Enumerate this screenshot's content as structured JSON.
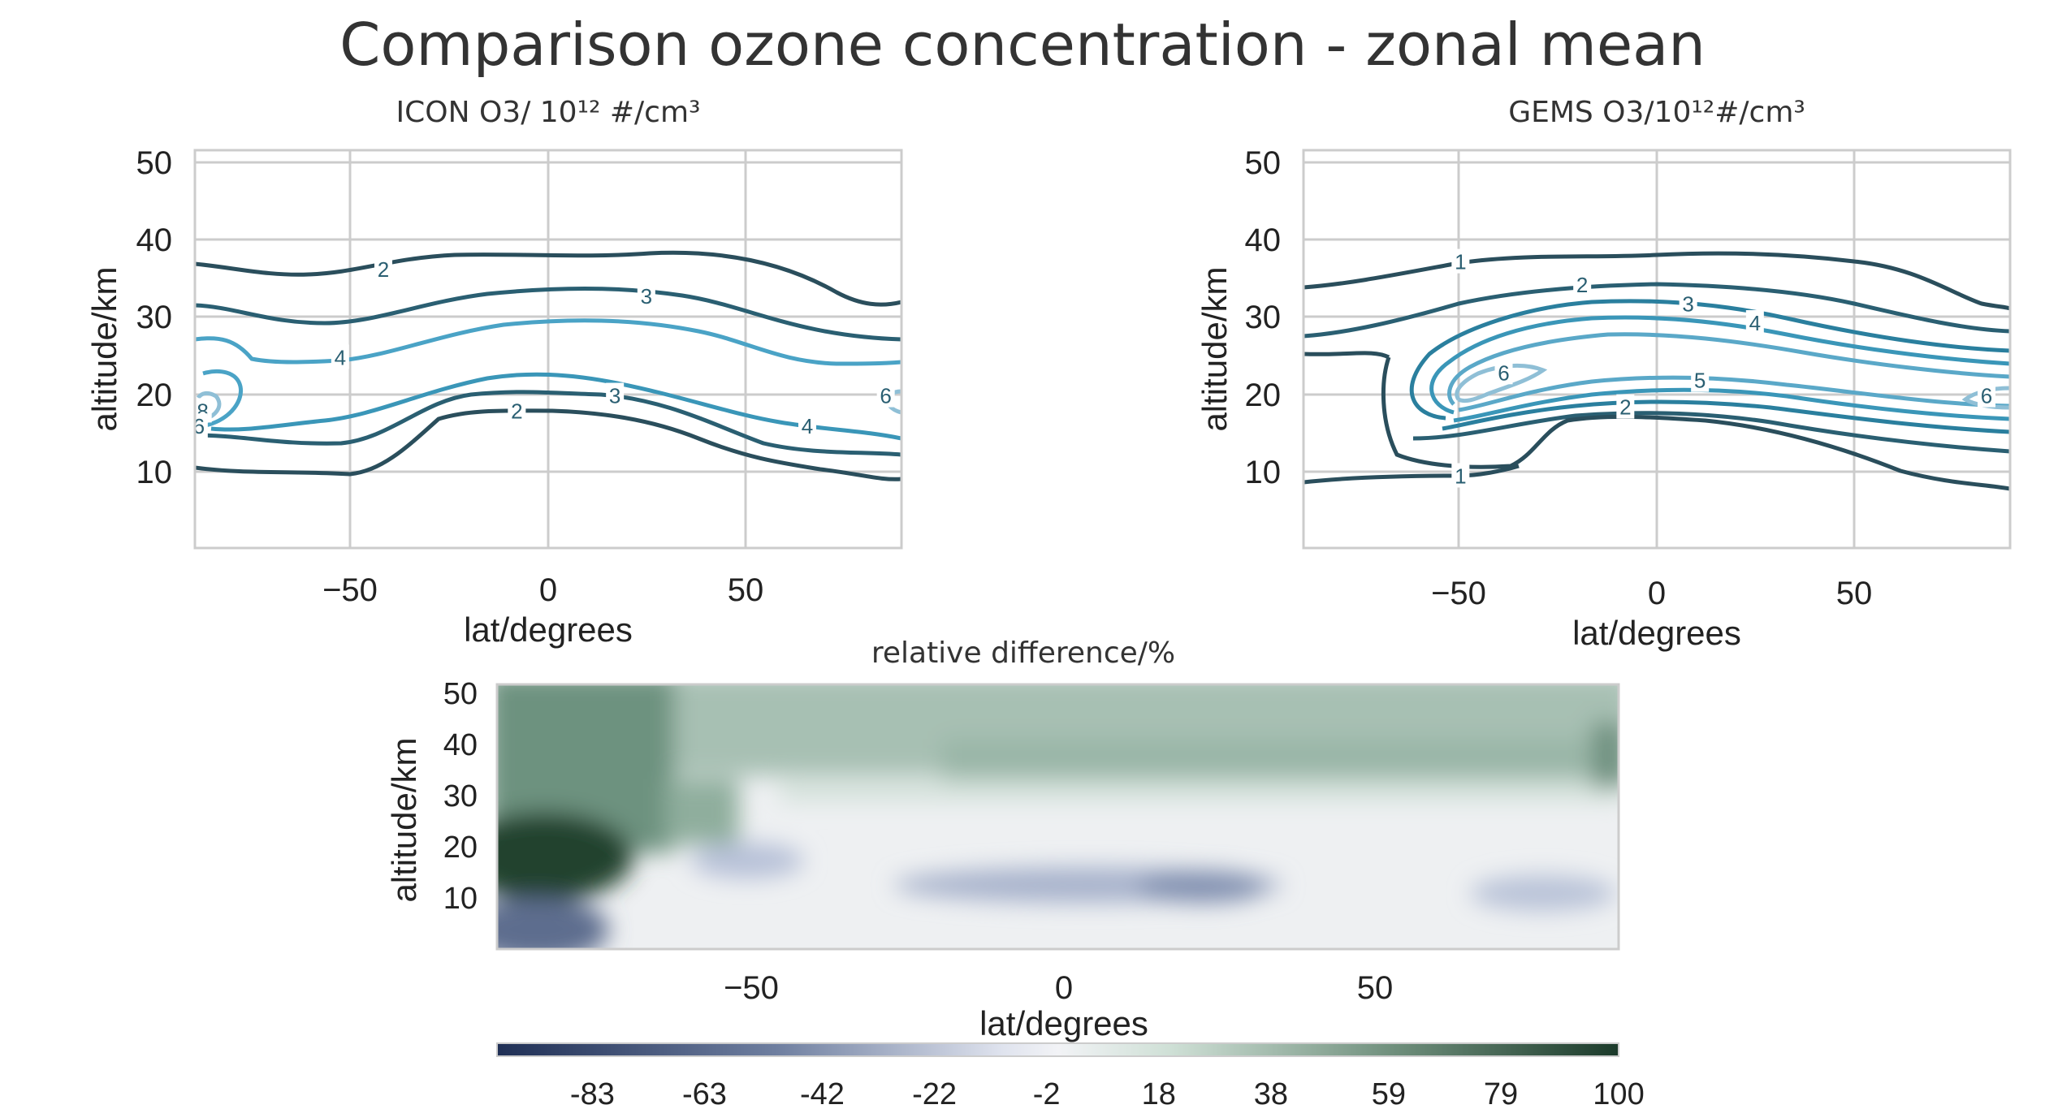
{
  "figure": {
    "suptitle": "Comparison ozone concentration - zonal mean"
  },
  "colors": {
    "contour_dark": "#2a4e5c",
    "contour_mid": "#2a7f9e",
    "contour_light": "#4aa3c6",
    "contour_pale": "#8fbfd6",
    "grid": "#cccccc",
    "diverging_low": "#1f2f55",
    "diverging_mid": "#f2f3f6",
    "diverging_high": "#1b3a2a"
  },
  "chart_data": [
    {
      "type": "contour",
      "title": "ICON O3/ 10¹² #/cm³",
      "xlabel": "lat/degrees",
      "ylabel": "altitude/km",
      "xlim": [
        -90,
        90
      ],
      "ylim": [
        0,
        52
      ],
      "xticks": [
        "−50",
        "0",
        "50"
      ],
      "yticks": [
        "10",
        "20",
        "30",
        "40",
        "50"
      ],
      "grid": true,
      "contour_labels": [
        {
          "text": "2",
          "lat": -42,
          "alt": 36.5
        },
        {
          "text": "3",
          "lat": 25,
          "alt": 33
        },
        {
          "text": "4",
          "lat": -53,
          "alt": 25
        },
        {
          "text": "3",
          "lat": 17,
          "alt": 20
        },
        {
          "text": "2",
          "lat": -8,
          "alt": 18
        },
        {
          "text": "4",
          "lat": 66,
          "alt": 16
        },
        {
          "text": "6",
          "lat": 86,
          "alt": 20
        },
        {
          "text": "8",
          "lat": -88,
          "alt": 18
        },
        {
          "text": "6",
          "lat": -89,
          "alt": 16
        }
      ]
    },
    {
      "type": "contour",
      "title": "GEMS O3/10¹²#/cm³",
      "xlabel": "lat/degrees",
      "ylabel": "altitude/km",
      "xlim": [
        -90,
        90
      ],
      "ylim": [
        0,
        52
      ],
      "xticks": [
        "−50",
        "0",
        "50"
      ],
      "yticks": [
        "10",
        "20",
        "30",
        "40",
        "50"
      ],
      "grid": true,
      "contour_labels": [
        {
          "text": "1",
          "lat": -50,
          "alt": 37.5
        },
        {
          "text": "2",
          "lat": -19,
          "alt": 34.5
        },
        {
          "text": "3",
          "lat": 8,
          "alt": 32
        },
        {
          "text": "4",
          "lat": 25,
          "alt": 29.5
        },
        {
          "text": "6",
          "lat": -39,
          "alt": 23
        },
        {
          "text": "5",
          "lat": 11,
          "alt": 22
        },
        {
          "text": "2",
          "lat": -8,
          "alt": 18.5
        },
        {
          "text": "1",
          "lat": -50,
          "alt": 9.5
        },
        {
          "text": "6",
          "lat": 84,
          "alt": 20
        }
      ]
    },
    {
      "type": "heatmap",
      "title": "relative difference/%",
      "xlabel": "lat/degrees",
      "ylabel": "altitude/km",
      "xlim": [
        -90,
        90
      ],
      "ylim": [
        0,
        52
      ],
      "xticks": [
        "−50",
        "0",
        "50"
      ],
      "yticks": [
        "10",
        "20",
        "30",
        "40",
        "50"
      ],
      "colorbar_ticks": [
        "-83",
        "-63",
        "-42",
        "-22",
        "-2",
        "18",
        "38",
        "59",
        "79",
        "100"
      ],
      "colorbar_range": [
        -100,
        100
      ],
      "grid": false
    }
  ]
}
